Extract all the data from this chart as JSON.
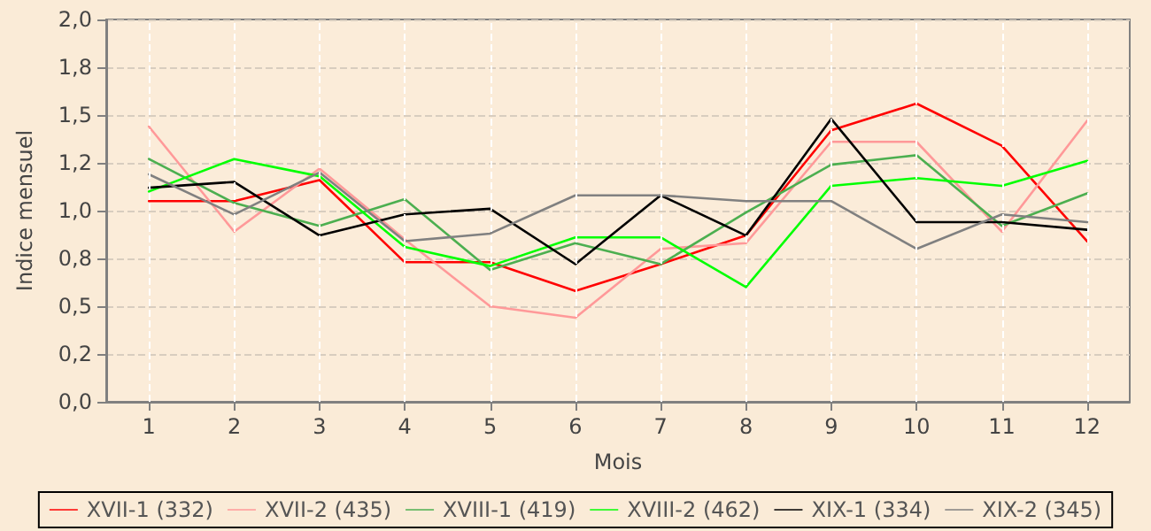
{
  "chart_data": {
    "type": "line",
    "xlabel": "Mois",
    "ylabel": "Indice mensuel",
    "x": [
      1,
      2,
      3,
      4,
      5,
      6,
      7,
      8,
      9,
      10,
      11,
      12
    ],
    "xlim": [
      0.5,
      12.5
    ],
    "xticks": [
      1,
      2,
      3,
      4,
      5,
      6,
      7,
      8,
      9,
      10,
      11,
      12
    ],
    "series": [
      {
        "name": "XVII-1 (332)",
        "color": "#ff0000",
        "values": [
          1.05,
          1.05,
          1.16,
          0.73,
          0.73,
          0.58,
          0.72,
          0.87,
          1.42,
          1.56,
          1.34,
          0.84
        ]
      },
      {
        "name": "XVII-2 (435)",
        "color": "#ff9999",
        "values": [
          1.44,
          0.89,
          1.22,
          0.85,
          0.5,
          0.44,
          0.8,
          0.83,
          1.36,
          1.36,
          0.89,
          1.47
        ]
      },
      {
        "name": "XVIII-1 (419)",
        "color": "#4caf50",
        "values": [
          1.27,
          1.04,
          0.92,
          1.06,
          0.69,
          0.83,
          0.72,
          0.99,
          1.24,
          1.29,
          0.92,
          1.09
        ]
      },
      {
        "name": "XVIII-2 (462)",
        "color": "#00ff00",
        "values": [
          1.1,
          1.27,
          1.18,
          0.81,
          0.71,
          0.86,
          0.86,
          0.6,
          1.13,
          1.17,
          1.13,
          1.26
        ]
      },
      {
        "name": "XIX-1 (334)",
        "color": "#000000",
        "values": [
          1.12,
          1.15,
          0.87,
          0.98,
          1.01,
          0.72,
          1.08,
          0.87,
          1.48,
          0.94,
          0.94,
          0.9
        ]
      },
      {
        "name": "XIX-2 (345)",
        "color": "#808080",
        "values": [
          1.19,
          0.98,
          1.2,
          0.84,
          0.88,
          1.08,
          1.08,
          1.05,
          1.05,
          0.8,
          0.98,
          0.94
        ]
      }
    ],
    "ylim": [
      0,
      2
    ],
    "yticks": [
      {
        "value": 0,
        "label": "0,0"
      },
      {
        "value": 0.25,
        "label": "0,2"
      },
      {
        "value": 0.5,
        "label": "0,5"
      },
      {
        "value": 0.75,
        "label": "0,8"
      },
      {
        "value": 1,
        "label": "1,0"
      },
      {
        "value": 1.25,
        "label": "1,2"
      },
      {
        "value": 1.5,
        "label": "1,5"
      },
      {
        "value": 1.75,
        "label": "1,8"
      },
      {
        "value": 2,
        "label": "2,0"
      }
    ],
    "grid": true,
    "legend": "bottom",
    "marker": "none",
    "line_style": "solid"
  }
}
